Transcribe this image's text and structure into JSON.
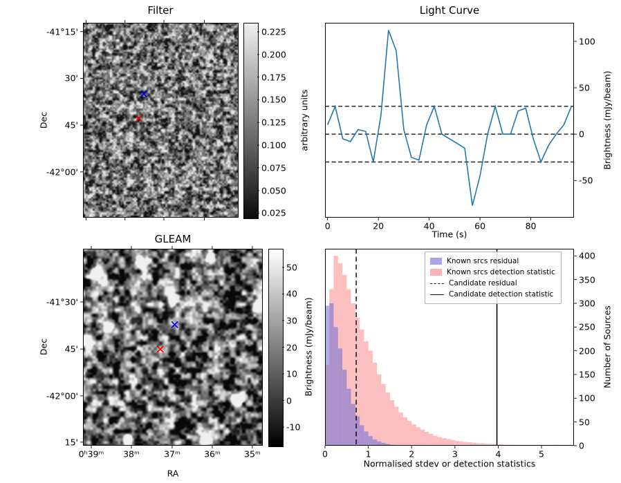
{
  "chart_data": [
    {
      "type": "heatmap",
      "title": "Filter",
      "ylabel": "Dec",
      "ytick_labels": [
        "-41°15'",
        "30'",
        "45'",
        "-42°00'"
      ],
      "colorbar": {
        "label": "arbitrary units",
        "ticks": [
          "0.225",
          "0.200",
          "0.175",
          "0.150",
          "0.125",
          "0.100",
          "0.075",
          "0.050",
          "0.025"
        ],
        "range": [
          0.02,
          0.235
        ]
      },
      "markers": [
        {
          "name": "candidate-position",
          "symbol": "x",
          "color": "#0000ee",
          "x": 0.39,
          "y": 0.365
        },
        {
          "name": "reference-position",
          "symbol": "x",
          "color": "#ee0000",
          "x": 0.36,
          "y": 0.49
        }
      ]
    },
    {
      "type": "line",
      "title": "Light Curve",
      "xlabel": "Time (s)",
      "ylabel": "Brightness (mJy/beam)",
      "x": [
        0,
        3,
        6,
        9,
        12,
        15,
        18,
        21,
        24,
        27,
        30,
        33,
        36,
        39,
        42,
        45,
        48,
        51,
        54,
        57,
        60,
        63,
        66,
        69,
        72,
        75,
        78,
        81,
        84,
        87,
        90,
        93,
        96
      ],
      "y": [
        10,
        30,
        -5,
        -8,
        5,
        3,
        -30,
        20,
        112,
        90,
        5,
        -25,
        -28,
        10,
        30,
        0,
        -5,
        -10,
        -15,
        -77,
        -45,
        0,
        30,
        0,
        0,
        25,
        28,
        -5,
        -30,
        -12,
        0,
        10,
        30
      ],
      "threshold_lines": [
        30,
        0,
        -30
      ],
      "xlim": [
        -1,
        97
      ],
      "ylim": [
        -90,
        120
      ],
      "xticks": [
        0,
        20,
        40,
        60,
        80
      ],
      "yticks": [
        100,
        50,
        0,
        -50
      ],
      "line_color": "#1f77b4"
    },
    {
      "type": "heatmap",
      "title": "GLEAM",
      "xlabel": "RA",
      "ylabel": "Dec",
      "xtick_labels": [
        "0ʰ39ᵐ",
        "38ᵐ",
        "37ᵐ",
        "36ᵐ",
        "35ᵐ"
      ],
      "ytick_labels": [
        "-41°30'",
        "45'",
        "-42°00'",
        "15'"
      ],
      "colorbar": {
        "label": "Brightness (mJy/beam)",
        "ticks": [
          "50",
          "40",
          "30",
          "20",
          "10",
          "0",
          "-10"
        ],
        "range": [
          -17,
          57
        ]
      },
      "bright_sources": [
        [
          0.33,
          0.07
        ],
        [
          0.71,
          0.05
        ],
        [
          0.08,
          0.12
        ],
        [
          0.5,
          0.25
        ],
        [
          0.97,
          0.28
        ],
        [
          0.02,
          0.47
        ],
        [
          0.86,
          0.77
        ],
        [
          0.25,
          0.97
        ],
        [
          0.67,
          0.97
        ],
        [
          0.13,
          0.4
        ]
      ],
      "markers": [
        {
          "name": "candidate-position",
          "symbol": "x",
          "color": "#0000ee",
          "x": 0.51,
          "y": 0.385
        },
        {
          "name": "reference-position",
          "symbol": "x",
          "color": "#ee0000",
          "x": 0.43,
          "y": 0.51
        }
      ]
    },
    {
      "type": "bar",
      "title": "",
      "xlabel": "Normalised stdev or detection statistics",
      "ylabel": "Number of Sources",
      "bin_start": 0,
      "bin_width": 0.1,
      "series": [
        {
          "name": "Known srcs residual",
          "color": "#6b6bd8",
          "values": [
            295,
            300,
            250,
            205,
            160,
            120,
            88,
            62,
            43,
            30,
            20,
            13,
            9,
            6,
            4,
            2,
            1,
            1,
            0,
            0,
            0,
            0,
            0,
            0,
            0,
            0,
            0,
            0,
            0,
            0,
            0,
            0,
            0,
            0,
            0,
            0,
            0,
            0,
            0,
            0,
            0,
            0,
            0,
            0,
            0,
            0,
            0,
            0,
            0,
            0,
            0,
            0,
            0,
            0,
            0,
            0,
            0
          ]
        },
        {
          "name": "Known srcs detection statistic",
          "color": "#fa8080",
          "values": [
            170,
            330,
            400,
            385,
            360,
            330,
            300,
            270,
            245,
            220,
            200,
            175,
            150,
            130,
            112,
            96,
            82,
            70,
            60,
            52,
            45,
            39,
            34,
            29,
            25,
            21,
            18,
            16,
            14,
            12,
            10,
            9,
            8,
            7,
            6,
            5,
            5,
            4,
            4,
            3,
            3,
            2,
            2,
            2,
            1,
            1,
            1,
            1,
            1,
            0,
            0,
            0,
            1,
            2,
            0,
            0,
            0
          ]
        }
      ],
      "candidate_residual": 0.72,
      "candidate_detection_statistic": 3.97,
      "xlim": [
        0,
        5.75
      ],
      "ylim": [
        0,
        415
      ],
      "xticks": [
        0,
        1,
        2,
        3,
        4,
        5
      ],
      "yticks": [
        0,
        50,
        100,
        150,
        200,
        250,
        300,
        350,
        400
      ],
      "legend": [
        "Known srcs residual",
        "Known srcs detection statistic",
        "Candidate residual",
        "Candidate detection statistic"
      ],
      "legend_position": "upper right"
    }
  ]
}
